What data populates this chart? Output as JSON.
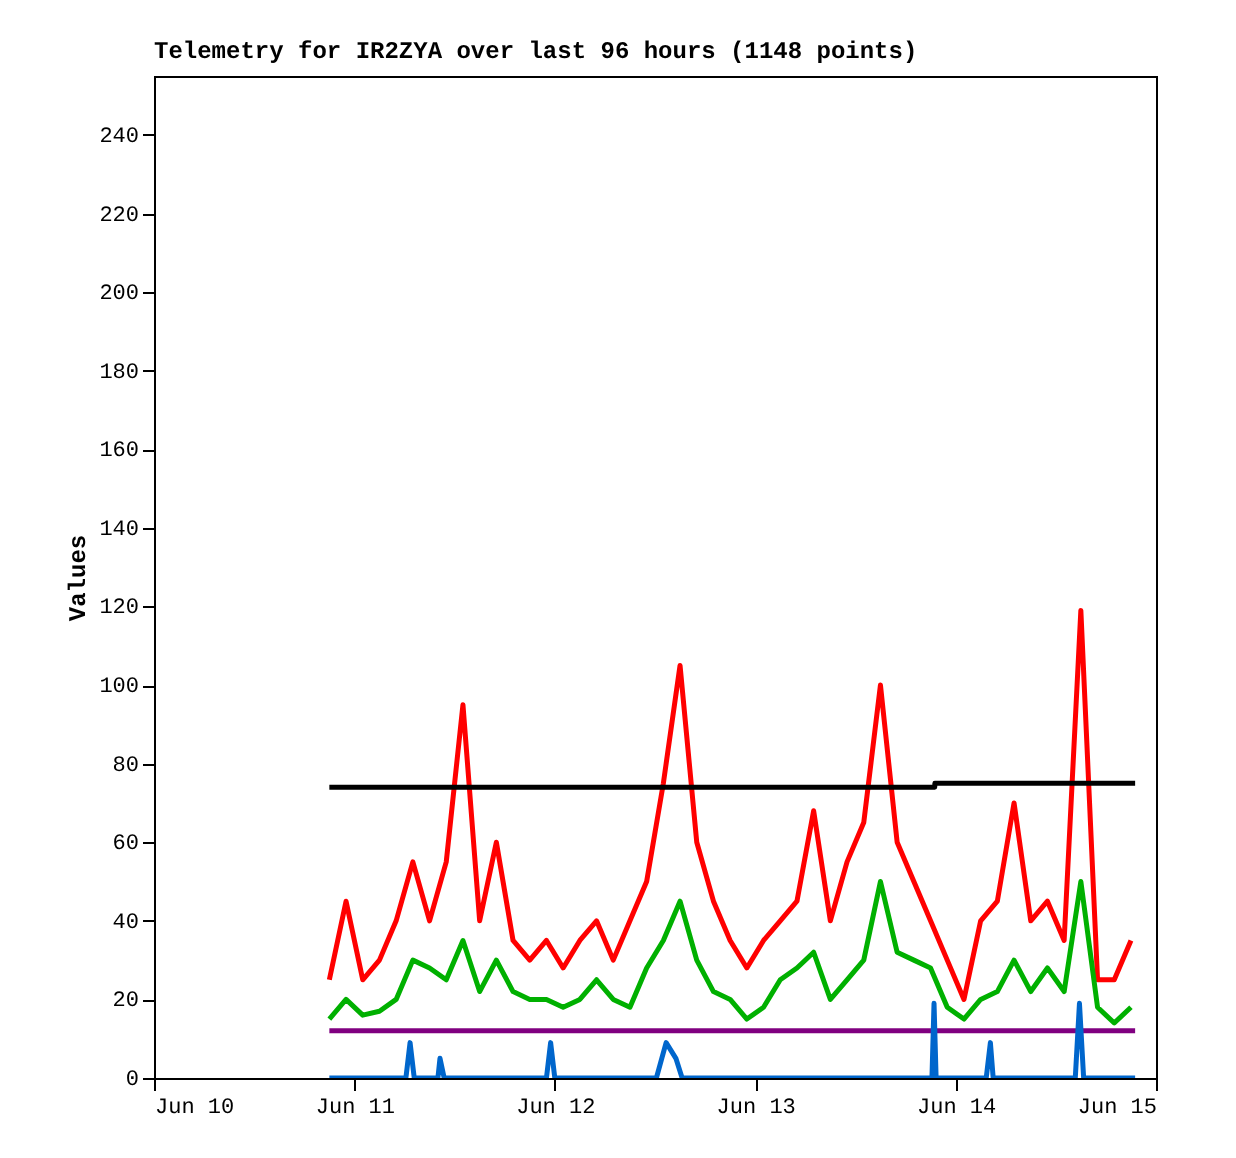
{
  "chart_data": {
    "type": "line",
    "title": "Telemetry for IR2ZYA over last 96 hours (1148 points)",
    "ylabel": "Values",
    "xlim": [
      "--06-10",
      "--06-15"
    ],
    "xticks": [
      {
        "value": "--06-10",
        "label": "Jun 10"
      },
      {
        "value": "--06-11",
        "label": "Jun 11"
      },
      {
        "value": "--06-12",
        "label": "Jun 12"
      },
      {
        "value": "--06-13",
        "label": "Jun 13"
      },
      {
        "value": "--06-14",
        "label": "Jun 14"
      },
      {
        "value": "--06-15",
        "label": "Jun 15"
      }
    ],
    "ylim": [
      0,
      255
    ],
    "yticks": [
      0,
      20,
      40,
      60,
      80,
      100,
      120,
      140,
      160,
      180,
      200,
      220,
      240
    ],
    "marker": "none",
    "line_style": "solid",
    "x": [
      "--06-10T21:00",
      "--06-10T23:00",
      "--06-11T01:00",
      "--06-11T03:00",
      "--06-11T05:00",
      "--06-11T07:00",
      "--06-11T09:00",
      "--06-11T11:00",
      "--06-11T13:00",
      "--06-11T15:00",
      "--06-11T17:00",
      "--06-11T19:00",
      "--06-11T21:00",
      "--06-11T23:00",
      "--06-12T01:00",
      "--06-12T03:00",
      "--06-12T05:00",
      "--06-12T07:00",
      "--06-12T09:00",
      "--06-12T11:00",
      "--06-12T13:00",
      "--06-12T15:00",
      "--06-12T17:00",
      "--06-12T19:00",
      "--06-12T21:00",
      "--06-12T23:00",
      "--06-13T01:00",
      "--06-13T03:00",
      "--06-13T05:00",
      "--06-13T07:00",
      "--06-13T09:00",
      "--06-13T11:00",
      "--06-13T13:00",
      "--06-13T15:00",
      "--06-13T17:00",
      "--06-13T19:00",
      "--06-13T21:00",
      "--06-13T23:00",
      "--06-14T01:00",
      "--06-14T03:00",
      "--06-14T05:00",
      "--06-14T07:00",
      "--06-14T09:00",
      "--06-14T11:00",
      "--06-14T13:00",
      "--06-14T15:00",
      "--06-14T17:00",
      "--06-14T19:00",
      "--06-14T21:00"
    ],
    "series": [
      {
        "color": "#ff0000",
        "values": [
          25,
          45,
          25,
          30,
          40,
          55,
          40,
          55,
          95,
          40,
          60,
          35,
          30,
          35,
          28,
          35,
          40,
          30,
          40,
          50,
          75,
          105,
          60,
          45,
          35,
          28,
          35,
          40,
          45,
          68,
          40,
          55,
          65,
          100,
          60,
          50,
          40,
          30,
          20,
          40,
          45,
          70,
          40,
          45,
          35,
          119,
          25,
          25,
          35
        ]
      },
      {
        "color": "#00b000",
        "values": [
          15,
          20,
          16,
          17,
          20,
          30,
          28,
          25,
          35,
          22,
          30,
          22,
          20,
          20,
          18,
          20,
          25,
          20,
          18,
          28,
          35,
          45,
          30,
          22,
          20,
          15,
          18,
          25,
          28,
          32,
          20,
          25,
          30,
          50,
          32,
          30,
          28,
          18,
          15,
          20,
          22,
          30,
          22,
          28,
          22,
          50,
          18,
          14,
          18
        ]
      },
      {
        "color": "#000000",
        "x": [
          "--06-10T21:00",
          "--06-13T21:30",
          "--06-13T21:31",
          "--06-14T21:30"
        ],
        "values": [
          74,
          74,
          75,
          75
        ]
      },
      {
        "color": "#800080",
        "x": [
          "--06-10T21:00",
          "--06-14T21:30"
        ],
        "values": [
          12,
          12
        ]
      },
      {
        "color": "#0066cc",
        "x": [
          "--06-10T21:00",
          "--06-11T06:10",
          "--06-11T06:40",
          "--06-11T07:10",
          "--06-11T10:00",
          "--06-11T10:15",
          "--06-11T10:45",
          "--06-11T23:00",
          "--06-11T23:30",
          "--06-12T00:00",
          "--06-12T12:10",
          "--06-12T13:20",
          "--06-12T14:30",
          "--06-12T15:15",
          "--06-13T21:10",
          "--06-13T21:25",
          "--06-13T21:40",
          "--06-14T03:40",
          "--06-14T04:10",
          "--06-14T04:30",
          "--06-14T14:20",
          "--06-14T14:50",
          "--06-14T15:20",
          "--06-14T21:30"
        ],
        "values": [
          0,
          0,
          9,
          0,
          0,
          5,
          0,
          0,
          9,
          0,
          0,
          9,
          5,
          0,
          0,
          19,
          0,
          0,
          9,
          0,
          0,
          19,
          0,
          0
        ]
      }
    ]
  }
}
